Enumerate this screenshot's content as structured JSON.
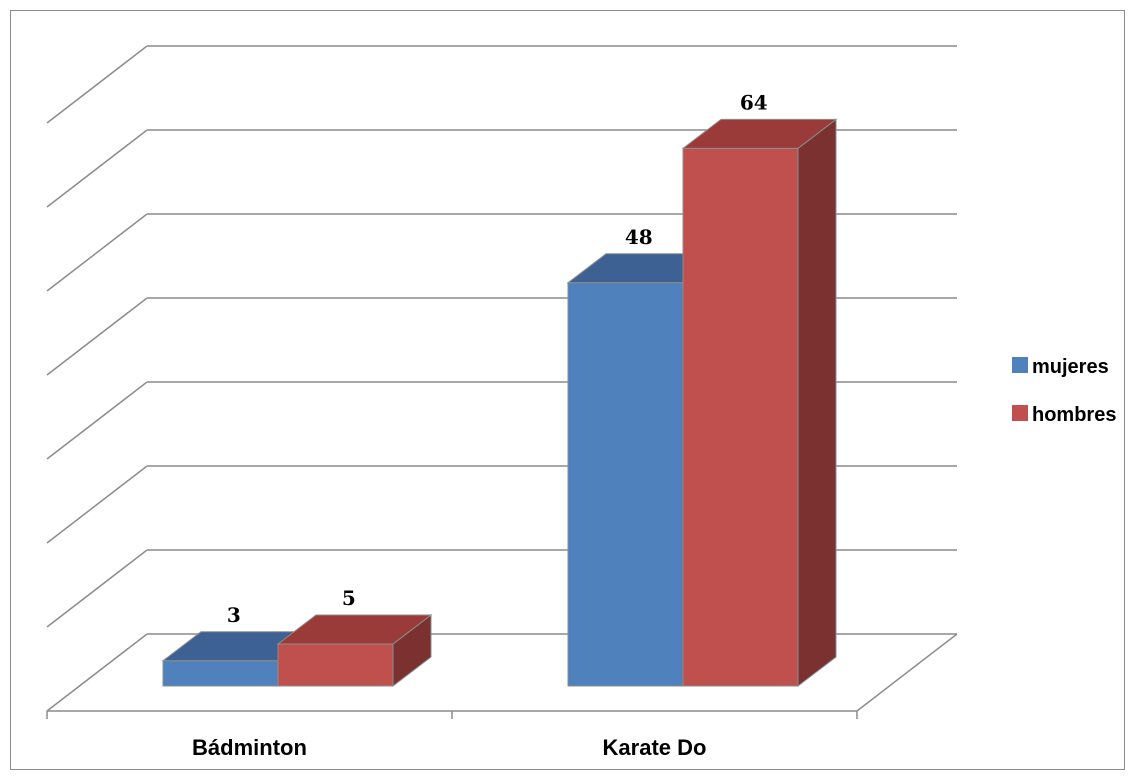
{
  "chart_data": {
    "type": "bar",
    "three_d": true,
    "categories": [
      "Bádminton",
      "Karate Do"
    ],
    "series": [
      {
        "name": "mujeres",
        "values": [
          3,
          48
        ],
        "color": "#4f81bd",
        "top_color": "#3c6192",
        "side_color": "#2f4f77"
      },
      {
        "name": "hombres",
        "values": [
          5,
          64
        ],
        "color": "#c0504d",
        "top_color": "#9b3b39",
        "side_color": "#7b3130"
      }
    ],
    "ylim": [
      0,
      70
    ],
    "gridline_count": 7,
    "grid": true,
    "y_tick_labels_shown": false,
    "data_labels": true,
    "legend_position": "right",
    "title": "",
    "xlabel": "",
    "ylabel": ""
  }
}
